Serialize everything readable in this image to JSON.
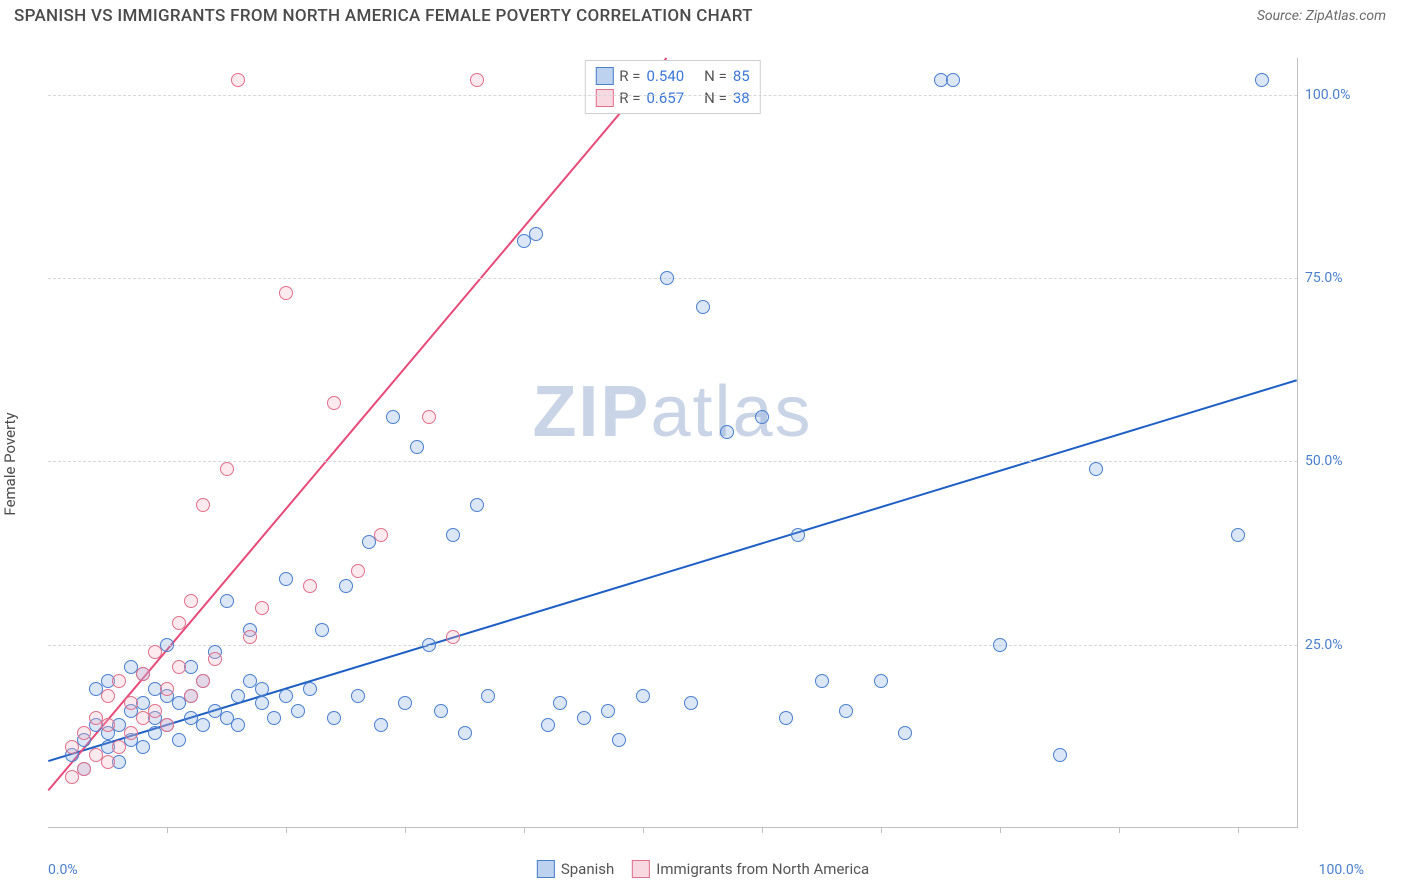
{
  "header": {
    "title": "SPANISH VS IMMIGRANTS FROM NORTH AMERICA FEMALE POVERTY CORRELATION CHART",
    "source": "Source: ZipAtlas.com"
  },
  "watermark": {
    "zip": "ZIP",
    "atlas": "atlas"
  },
  "chart": {
    "type": "scatter",
    "background_color": "#ffffff",
    "grid_color": "#d8d8d8",
    "axis_color": "#c0c0c0",
    "tick_label_color": "#4a7fce",
    "ylabel": "Female Poverty",
    "xlim": [
      0,
      105
    ],
    "ylim": [
      0,
      105
    ],
    "y_ticks": [
      {
        "v": 25,
        "label": "25.0%"
      },
      {
        "v": 50,
        "label": "50.0%"
      },
      {
        "v": 75,
        "label": "75.0%"
      },
      {
        "v": 100,
        "label": "100.0%"
      }
    ],
    "x_ticks": [
      10,
      20,
      30,
      40,
      50,
      60,
      70,
      80,
      90,
      100
    ],
    "x_axis_min_label": "0.0%",
    "x_axis_max_label": "100.0%",
    "marker_radius": 7,
    "marker_stroke_width": 1.2,
    "marker_fill_opacity": 0.28,
    "line_width": 2,
    "series": [
      {
        "name": "Spanish",
        "fill_color": "#7ca6e0",
        "stroke_color": "#4a7fce",
        "line_color": "#1e5fc4",
        "R": "0.540",
        "N": "85",
        "regression": {
          "x1": 0,
          "y1": 9,
          "x2": 105,
          "y2": 61
        },
        "points": [
          [
            2,
            10
          ],
          [
            3,
            12
          ],
          [
            3,
            8
          ],
          [
            4,
            14
          ],
          [
            4,
            19
          ],
          [
            5,
            13
          ],
          [
            5,
            11
          ],
          [
            5,
            20
          ],
          [
            6,
            14
          ],
          [
            6,
            9
          ],
          [
            7,
            16
          ],
          [
            7,
            12
          ],
          [
            7,
            22
          ],
          [
            8,
            11
          ],
          [
            8,
            17
          ],
          [
            8,
            21
          ],
          [
            9,
            13
          ],
          [
            9,
            19
          ],
          [
            9,
            15
          ],
          [
            10,
            14
          ],
          [
            10,
            18
          ],
          [
            10,
            25
          ],
          [
            11,
            12
          ],
          [
            11,
            17
          ],
          [
            12,
            15
          ],
          [
            12,
            22
          ],
          [
            12,
            18
          ],
          [
            13,
            14
          ],
          [
            13,
            20
          ],
          [
            14,
            16
          ],
          [
            14,
            24
          ],
          [
            15,
            15
          ],
          [
            15,
            31
          ],
          [
            16,
            18
          ],
          [
            16,
            14
          ],
          [
            17,
            20
          ],
          [
            17,
            27
          ],
          [
            18,
            17
          ],
          [
            18,
            19
          ],
          [
            19,
            15
          ],
          [
            20,
            18
          ],
          [
            20,
            34
          ],
          [
            21,
            16
          ],
          [
            22,
            19
          ],
          [
            23,
            27
          ],
          [
            24,
            15
          ],
          [
            25,
            33
          ],
          [
            26,
            18
          ],
          [
            27,
            39
          ],
          [
            28,
            14
          ],
          [
            29,
            56
          ],
          [
            30,
            17
          ],
          [
            31,
            52
          ],
          [
            32,
            25
          ],
          [
            33,
            16
          ],
          [
            34,
            40
          ],
          [
            35,
            13
          ],
          [
            36,
            44
          ],
          [
            37,
            18
          ],
          [
            40,
            80
          ],
          [
            41,
            81
          ],
          [
            42,
            14
          ],
          [
            43,
            17
          ],
          [
            45,
            15
          ],
          [
            47,
            16
          ],
          [
            48,
            12
          ],
          [
            50,
            18
          ],
          [
            52,
            75
          ],
          [
            54,
            17
          ],
          [
            55,
            71
          ],
          [
            57,
            54
          ],
          [
            60,
            56
          ],
          [
            62,
            15
          ],
          [
            63,
            40
          ],
          [
            65,
            20
          ],
          [
            67,
            16
          ],
          [
            70,
            20
          ],
          [
            72,
            13
          ],
          [
            75,
            102
          ],
          [
            76,
            102
          ],
          [
            80,
            25
          ],
          [
            85,
            10
          ],
          [
            88,
            49
          ],
          [
            100,
            40
          ],
          [
            102,
            102
          ]
        ]
      },
      {
        "name": "Immigrants from North America",
        "fill_color": "#f4b4c3",
        "stroke_color": "#e0708c",
        "line_color": "#e84a7a",
        "R": "0.657",
        "N": "38",
        "regression": {
          "x1": 0,
          "y1": 5,
          "x2": 52,
          "y2": 105
        },
        "points": [
          [
            2,
            7
          ],
          [
            2,
            11
          ],
          [
            3,
            8
          ],
          [
            3,
            13
          ],
          [
            4,
            10
          ],
          [
            4,
            15
          ],
          [
            5,
            9
          ],
          [
            5,
            14
          ],
          [
            5,
            18
          ],
          [
            6,
            11
          ],
          [
            6,
            20
          ],
          [
            7,
            13
          ],
          [
            7,
            17
          ],
          [
            8,
            15
          ],
          [
            8,
            21
          ],
          [
            9,
            16
          ],
          [
            9,
            24
          ],
          [
            10,
            14
          ],
          [
            10,
            19
          ],
          [
            11,
            22
          ],
          [
            11,
            28
          ],
          [
            12,
            18
          ],
          [
            12,
            31
          ],
          [
            13,
            20
          ],
          [
            13,
            44
          ],
          [
            14,
            23
          ],
          [
            15,
            49
          ],
          [
            16,
            102
          ],
          [
            17,
            26
          ],
          [
            18,
            30
          ],
          [
            20,
            73
          ],
          [
            22,
            33
          ],
          [
            24,
            58
          ],
          [
            26,
            35
          ],
          [
            28,
            40
          ],
          [
            32,
            56
          ],
          [
            34,
            26
          ],
          [
            36,
            102
          ]
        ]
      }
    ],
    "r_legend_labels": {
      "r": "R  =",
      "n": "N  ="
    },
    "bottom_legend": {
      "items": [
        {
          "key": "spanish",
          "label": "Spanish"
        },
        {
          "key": "imm",
          "label": "Immigrants from North America"
        }
      ]
    }
  }
}
